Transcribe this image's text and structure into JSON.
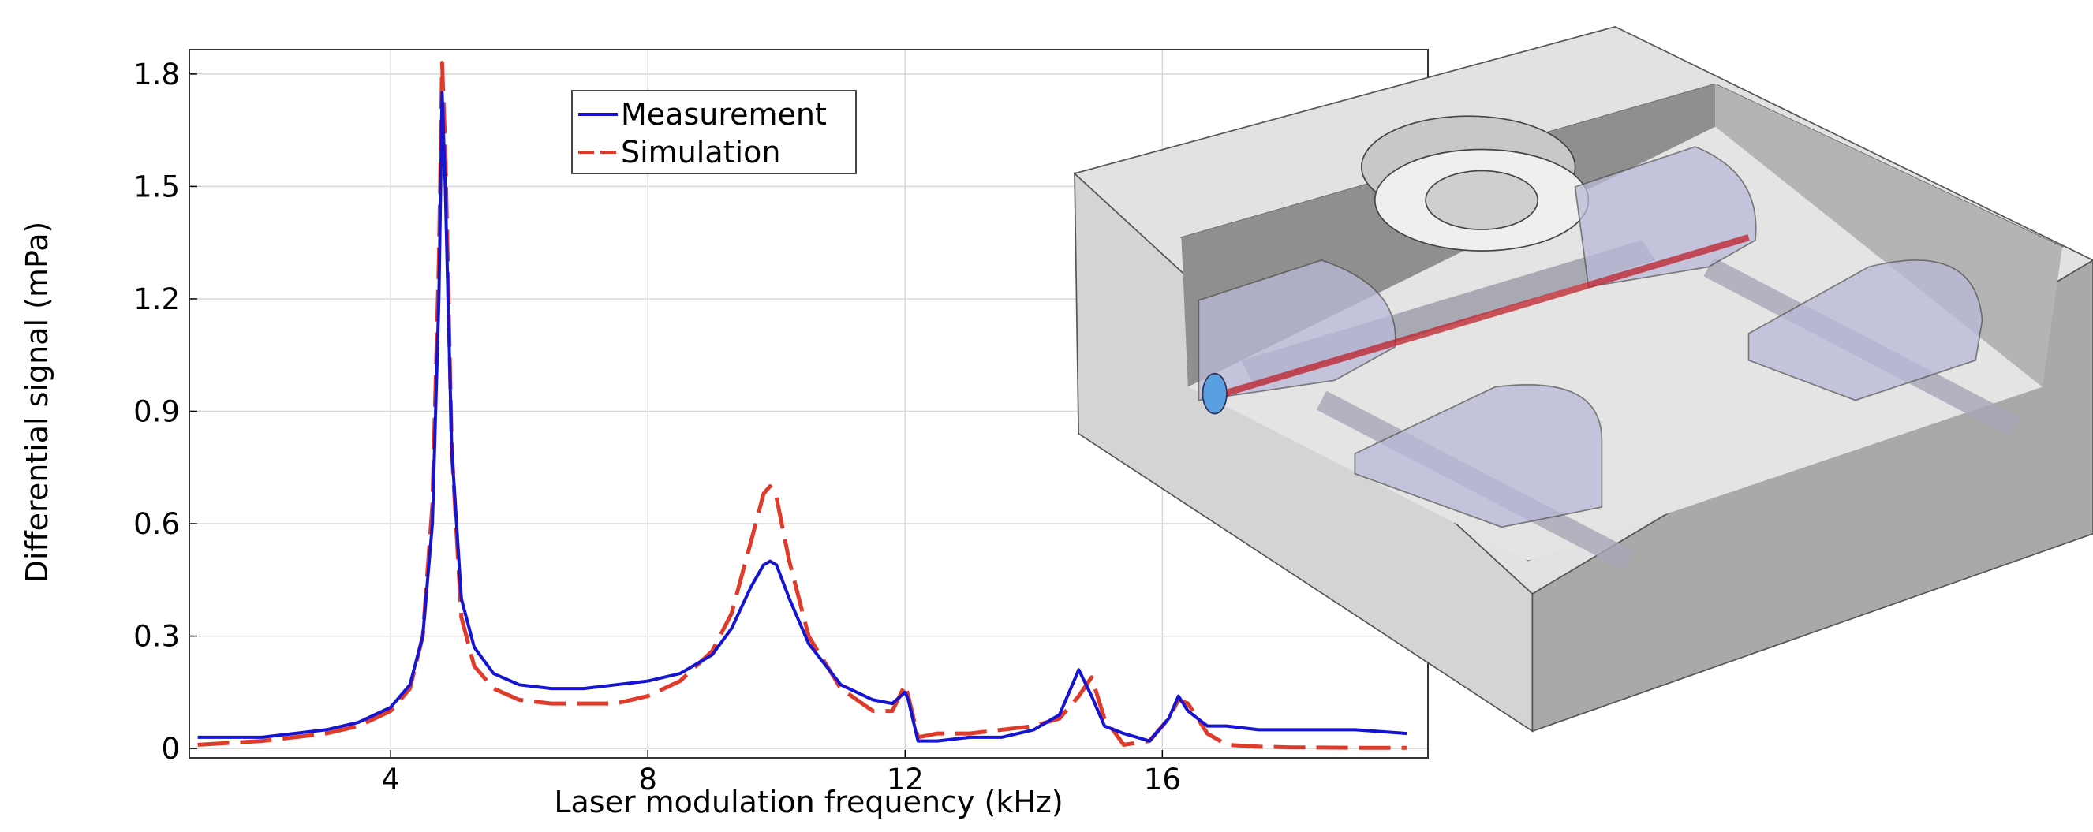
{
  "chart_data": {
    "type": "line",
    "xlabel": "Laser modulation frequency (kHz)",
    "ylabel": "Differential signal (mPa)",
    "x": [
      1,
      1.5,
      2,
      2.5,
      3,
      3.5,
      4,
      4.3,
      4.5,
      4.65,
      4.75,
      4.8,
      4.85,
      4.95,
      5.1,
      5.3,
      5.6,
      6,
      6.5,
      7,
      7.5,
      8,
      8.5,
      9,
      9.3,
      9.6,
      9.8,
      9.9,
      10,
      10.2,
      10.5,
      11,
      11.5,
      11.8,
      12,
      12.05,
      12.2,
      12.5,
      13,
      13.5,
      14,
      14.4,
      14.7,
      14.9,
      15.1,
      15.4,
      15.8,
      16.1,
      16.25,
      16.4,
      16.7,
      17,
      17.5,
      18,
      19,
      19.8
    ],
    "series": [
      {
        "name": "Measurement",
        "color": "#1414d2",
        "dash": false,
        "values": [
          0.03,
          0.03,
          0.03,
          0.04,
          0.05,
          0.07,
          0.11,
          0.17,
          0.3,
          0.6,
          1.2,
          1.75,
          1.5,
          0.8,
          0.4,
          0.27,
          0.2,
          0.17,
          0.16,
          0.16,
          0.17,
          0.18,
          0.2,
          0.25,
          0.32,
          0.43,
          0.49,
          0.5,
          0.49,
          0.4,
          0.28,
          0.17,
          0.13,
          0.12,
          0.15,
          0.13,
          0.02,
          0.02,
          0.03,
          0.03,
          0.05,
          0.09,
          0.21,
          0.14,
          0.06,
          0.04,
          0.02,
          0.08,
          0.14,
          0.1,
          0.06,
          0.06,
          0.05,
          0.05,
          0.05,
          0.04
        ]
      },
      {
        "name": "Simulation",
        "color": "#e03a2a",
        "dash": true,
        "values": [
          0.01,
          0.015,
          0.02,
          0.03,
          0.04,
          0.06,
          0.1,
          0.16,
          0.3,
          0.65,
          1.3,
          1.83,
          1.6,
          0.8,
          0.35,
          0.22,
          0.16,
          0.13,
          0.12,
          0.12,
          0.12,
          0.14,
          0.18,
          0.26,
          0.36,
          0.55,
          0.68,
          0.7,
          0.67,
          0.5,
          0.3,
          0.16,
          0.1,
          0.1,
          0.17,
          0.14,
          0.03,
          0.04,
          0.04,
          0.05,
          0.06,
          0.08,
          0.14,
          0.19,
          0.08,
          0.01,
          0.02,
          0.08,
          0.13,
          0.12,
          0.04,
          0.01,
          0.005,
          0.003,
          0.002,
          0.002
        ]
      }
    ],
    "xlim": [
      0.87,
      20.13
    ],
    "xticks": [
      4,
      8,
      12,
      16
    ],
    "ylim": [
      -0.025,
      1.865
    ],
    "yticks": [
      0,
      0.3,
      0.6,
      0.9,
      1.2,
      1.5,
      1.8
    ],
    "grid": true,
    "legend": "upper center"
  }
}
